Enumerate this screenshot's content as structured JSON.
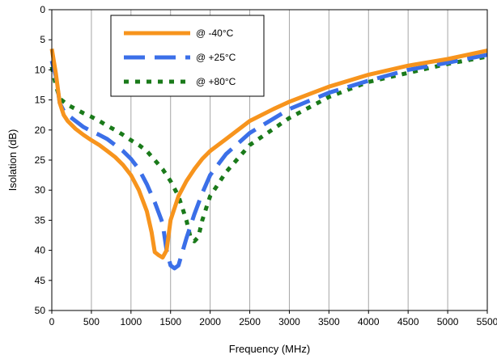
{
  "chart_data": {
    "type": "line",
    "title": "",
    "xlabel": "Frequency (MHz)",
    "ylabel": "Isolation (dB)",
    "xlim": [
      0,
      5500
    ],
    "ylim": [
      0,
      50
    ],
    "y_inverted": true,
    "x_ticks": [
      0,
      500,
      1000,
      1500,
      2000,
      2500,
      3000,
      3500,
      4000,
      4500,
      5000,
      5500
    ],
    "y_ticks": [
      0,
      5,
      10,
      15,
      20,
      25,
      30,
      35,
      40,
      45,
      50
    ],
    "x_tick_labels": [
      "0",
      "500",
      "1000",
      "1500",
      "2000",
      "2500",
      "3000",
      "3500",
      "4000",
      "4500",
      "5000",
      "5500"
    ],
    "y_tick_labels": [
      "0",
      "5",
      "10",
      "15",
      "20",
      "25",
      "30",
      "35",
      "40",
      "45",
      "50"
    ],
    "grid": "vertical",
    "legend_position": "top-left",
    "series": [
      {
        "name": "@ -40°C",
        "color": "#f7941d",
        "style": "solid",
        "x": [
          0,
          50,
          100,
          150,
          200,
          300,
          400,
          500,
          600,
          700,
          800,
          900,
          1000,
          1100,
          1200,
          1260,
          1300,
          1350,
          1400,
          1450,
          1500,
          1600,
          1700,
          1800,
          1900,
          2000,
          2200,
          2500,
          2800,
          3000,
          3500,
          4000,
          4500,
          5000,
          5500
        ],
        "y": [
          6.5,
          10.5,
          15.5,
          17.5,
          18.5,
          19.8,
          20.8,
          21.7,
          22.5,
          23.5,
          24.5,
          25.8,
          27.5,
          30.0,
          33.5,
          37.0,
          40.3,
          40.8,
          41.2,
          40.0,
          35.0,
          31.0,
          28.5,
          26.5,
          24.8,
          23.5,
          21.5,
          18.5,
          16.5,
          15.3,
          12.8,
          10.8,
          9.3,
          8.2,
          6.8
        ]
      },
      {
        "name": "@ +25°C",
        "color": "#3b6fe8",
        "style": "dash",
        "x": [
          0,
          50,
          100,
          150,
          200,
          300,
          400,
          500,
          600,
          700,
          800,
          900,
          1000,
          1100,
          1200,
          1300,
          1400,
          1450,
          1500,
          1550,
          1600,
          1700,
          1800,
          1900,
          2000,
          2200,
          2500,
          3000,
          3500,
          4000,
          4500,
          5000,
          5500
        ],
        "y": [
          8.5,
          11.0,
          15.5,
          16.8,
          17.5,
          18.5,
          19.5,
          20.2,
          20.8,
          21.5,
          22.5,
          23.5,
          24.8,
          26.5,
          29.0,
          32.0,
          35.5,
          40.0,
          42.5,
          43.0,
          42.5,
          38.0,
          34.0,
          30.5,
          27.5,
          24.0,
          20.5,
          16.5,
          13.8,
          11.8,
          10.0,
          8.8,
          7.5
        ]
      },
      {
        "name": "@ +80°C",
        "color": "#1a7a1a",
        "style": "dot",
        "x": [
          0,
          50,
          100,
          150,
          200,
          300,
          400,
          500,
          600,
          700,
          800,
          900,
          1000,
          1100,
          1200,
          1300,
          1400,
          1500,
          1600,
          1700,
          1750,
          1800,
          1850,
          1900,
          1950,
          2000,
          2200,
          2500,
          3000,
          3500,
          4000,
          4500,
          5000,
          5500
        ],
        "y": [
          9.5,
          12.5,
          14.8,
          15.3,
          15.8,
          16.5,
          17.2,
          17.8,
          18.5,
          19.3,
          20.0,
          20.8,
          21.7,
          22.5,
          23.5,
          25.0,
          26.5,
          28.5,
          31.0,
          35.0,
          37.8,
          38.5,
          37.8,
          35.0,
          33.0,
          31.0,
          27.0,
          22.5,
          18.0,
          14.5,
          12.0,
          10.5,
          9.0,
          7.8
        ]
      }
    ]
  }
}
